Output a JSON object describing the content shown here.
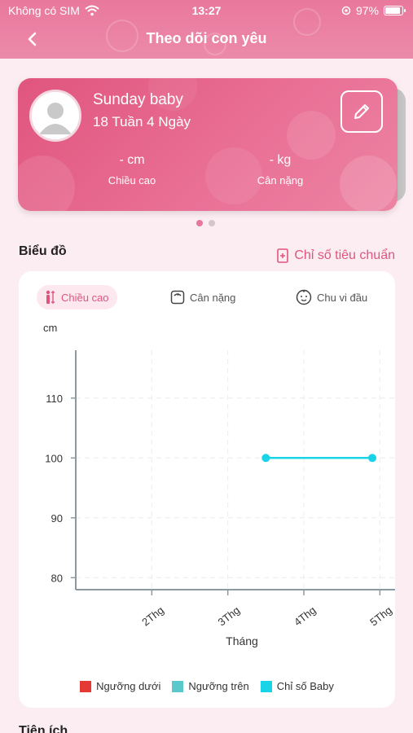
{
  "status_bar": {
    "carrier": "Không có SIM",
    "time": "13:27",
    "battery": "97%",
    "battery_level": 0.97
  },
  "nav": {
    "title": "Theo dõi con yêu"
  },
  "profile": {
    "name": "Sunday baby",
    "age": "18 Tuần 4 Ngày",
    "height_value": "- cm",
    "height_label": "Chiều cao",
    "weight_value": "- kg",
    "weight_label": "Cân nặng"
  },
  "pager": {
    "count": 2,
    "active": 0
  },
  "chart_section": {
    "title": "Biểu đồ",
    "standard_link": "Chỉ số tiêu chuẩn"
  },
  "tabs": [
    {
      "label": "Chiều cao",
      "icon": "height-icon",
      "active": true
    },
    {
      "label": "Cân nặng",
      "icon": "scale-icon",
      "active": false
    },
    {
      "label": "Chu vi đầu",
      "icon": "baby-face-icon",
      "active": false
    }
  ],
  "bottom_section": {
    "title": "Tiện ích"
  },
  "colors": {
    "accent": "#e0557e",
    "lower": "#e53935",
    "upper": "#5bc8cc",
    "baby": "#19d4e6"
  },
  "chart_data": {
    "type": "line",
    "ylabel": "cm",
    "xlabel": "Tháng",
    "x_categories": [
      "2Thg",
      "3Thg",
      "4Thg",
      "5Thg"
    ],
    "ylim": [
      78,
      118
    ],
    "yticks": [
      80,
      90,
      100,
      110
    ],
    "xlim": [
      1,
      5.2
    ],
    "grid": true,
    "series": [
      {
        "name": "Ngưỡng dưới",
        "color": "#e53935",
        "points": []
      },
      {
        "name": "Ngưỡng trên",
        "color": "#5bc8cc",
        "points": []
      },
      {
        "name": "Chỉ số Baby",
        "color": "#19d4e6",
        "points": [
          [
            3.5,
            100
          ],
          [
            4.9,
            100
          ]
        ]
      }
    ],
    "legend_position": "bottom"
  }
}
